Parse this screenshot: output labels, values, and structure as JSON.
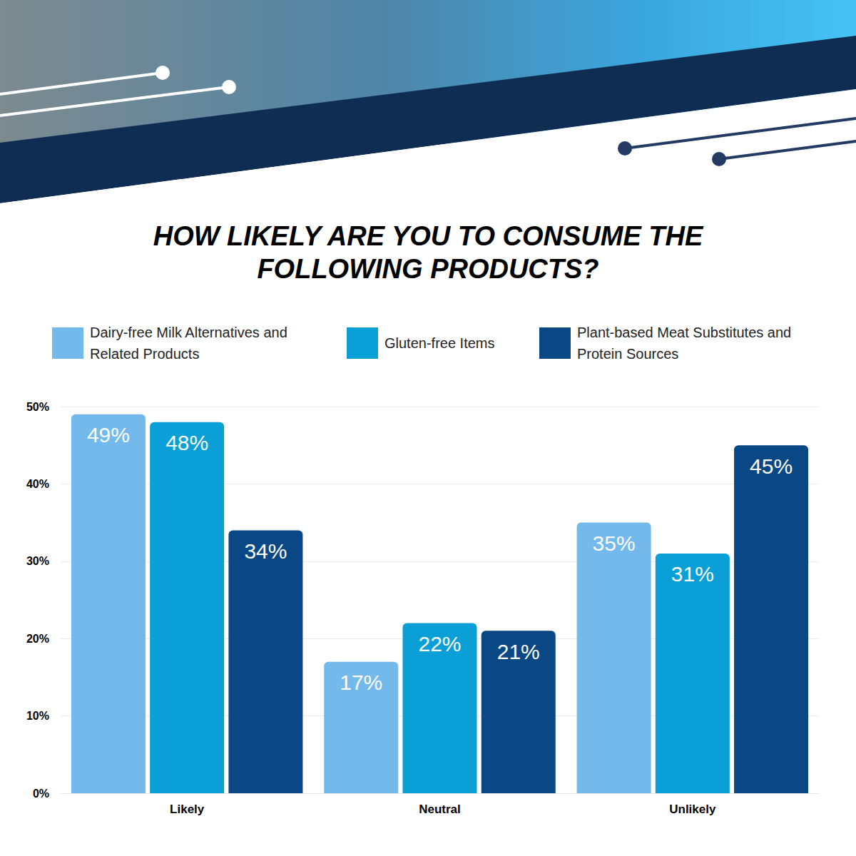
{
  "chart_data": {
    "type": "bar",
    "title": "HOW LIKELY ARE YOU TO CONSUME THE FOLLOWING PRODUCTS?",
    "categories": [
      "Likely",
      "Neutral",
      "Unlikely"
    ],
    "series": [
      {
        "name": "Dairy-free Milk Alternatives and Related Products",
        "color": "#74b9ec",
        "values": [
          49,
          17,
          35
        ],
        "value_labels": [
          "49%",
          "17%",
          "35%"
        ]
      },
      {
        "name": "Gluten-free Items",
        "color": "#0a9fd6",
        "values": [
          48,
          22,
          31
        ],
        "value_labels": [
          "48%",
          "22%",
          "31%"
        ]
      },
      {
        "name": "Plant-based Meat Substitutes and Protein Sources",
        "color": "#0a4785",
        "values": [
          34,
          21,
          45
        ],
        "value_labels": [
          "34%",
          "21%",
          "45%"
        ]
      }
    ],
    "ylim": [
      0,
      50
    ],
    "yticks": [
      {
        "value": 0,
        "label": "0%"
      },
      {
        "value": 10,
        "label": "10%"
      },
      {
        "value": 20,
        "label": "20%"
      },
      {
        "value": 30,
        "label": "30%"
      },
      {
        "value": 40,
        "label": "40%"
      },
      {
        "value": 50,
        "label": "50%"
      }
    ],
    "grid": true,
    "legend": "top",
    "data_labels": true
  }
}
